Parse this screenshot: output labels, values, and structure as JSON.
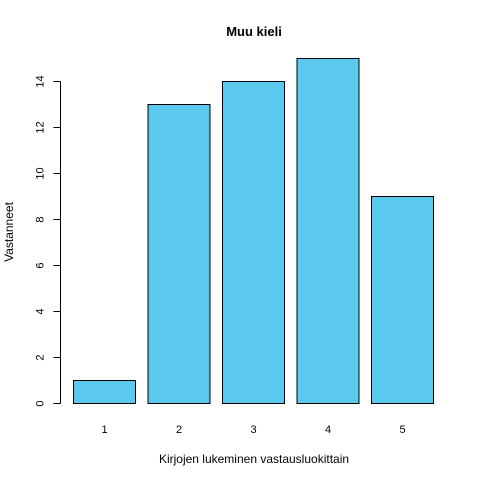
{
  "chart_data": {
    "type": "bar",
    "title": "Muu kieli",
    "xlabel": "Kirjojen lukeminen vastausluokittain",
    "ylabel": "Vastanneet",
    "categories": [
      "1",
      "2",
      "3",
      "4",
      "5"
    ],
    "values": [
      1,
      13,
      14,
      15,
      9
    ],
    "yticks": [
      "0",
      "2",
      "4",
      "6",
      "8",
      "10",
      "12",
      "14"
    ],
    "ylim": [
      0,
      15
    ],
    "grid": false,
    "bar_color": "#5BC8EE",
    "bar_outline_color": "#000000"
  }
}
